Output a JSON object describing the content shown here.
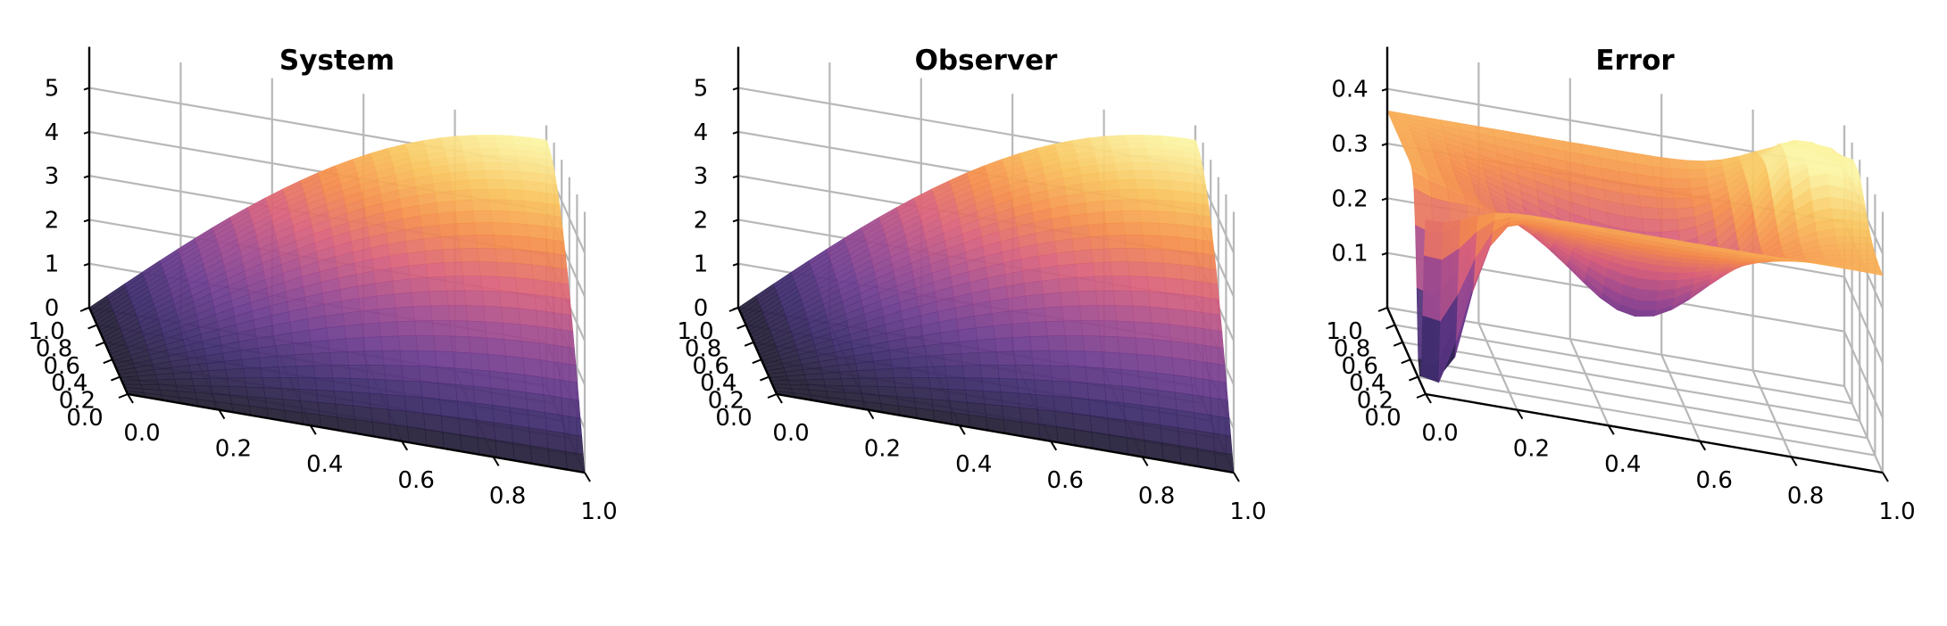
{
  "chart_data": [
    {
      "type": "surface",
      "title": "System",
      "xlabel": "",
      "ylabel": "",
      "zlabel": "",
      "xlim": [
        0.0,
        1.0
      ],
      "ylim": [
        0.0,
        1.0
      ],
      "zlim": [
        0,
        5.6
      ],
      "x_ticks": [
        "0.0",
        "0.2",
        "0.4",
        "0.6",
        "0.8",
        "1.0"
      ],
      "y_ticks": [
        "0.0",
        "0.2",
        "0.4",
        "0.6",
        "0.8",
        "1.0"
      ],
      "z_ticks": [
        "0",
        "1",
        "2",
        "3",
        "4",
        "5"
      ],
      "z_values": [
        0,
        1,
        2,
        3,
        4,
        5
      ],
      "peak_value": 5.6,
      "colormap": "inferno",
      "grid": true
    },
    {
      "type": "surface",
      "title": "Observer",
      "xlabel": "",
      "ylabel": "",
      "zlabel": "",
      "xlim": [
        0.0,
        1.0
      ],
      "ylim": [
        0.0,
        1.0
      ],
      "zlim": [
        0,
        5.6
      ],
      "x_ticks": [
        "0.0",
        "0.2",
        "0.4",
        "0.6",
        "0.8",
        "1.0"
      ],
      "y_ticks": [
        "0.0",
        "0.2",
        "0.4",
        "0.6",
        "0.8",
        "1.0"
      ],
      "z_ticks": [
        "0",
        "1",
        "2",
        "3",
        "4",
        "5"
      ],
      "z_values": [
        0,
        1,
        2,
        3,
        4,
        5
      ],
      "peak_value": 5.6,
      "colormap": "inferno",
      "grid": true
    },
    {
      "type": "surface",
      "title": "Error",
      "xlabel": "",
      "ylabel": "",
      "zlabel": "",
      "xlim": [
        0.0,
        1.0
      ],
      "ylim": [
        0.0,
        1.0
      ],
      "zlim": [
        0,
        0.45
      ],
      "x_ticks": [
        "0.0",
        "0.2",
        "0.4",
        "0.6",
        "0.8",
        "1.0"
      ],
      "y_ticks": [
        "0.0",
        "0.2",
        "0.4",
        "0.6",
        "0.8",
        "1.0"
      ],
      "z_ticks": [
        "0.1",
        "0.2",
        "0.3",
        "0.4"
      ],
      "z_values": [
        0.1,
        0.2,
        0.3,
        0.4
      ],
      "peak_value": 0.45,
      "colormap": "inferno",
      "grid": true
    }
  ],
  "colors": {
    "colormap_stops": [
      "#1f1b2d",
      "#3b2a6b",
      "#6a3a8e",
      "#a04a8f",
      "#d9607a",
      "#f48b4a",
      "#f9c25a",
      "#fbf5a5"
    ],
    "grid": "#b8b8b8",
    "axis": "#000000",
    "background": "#ffffff"
  }
}
